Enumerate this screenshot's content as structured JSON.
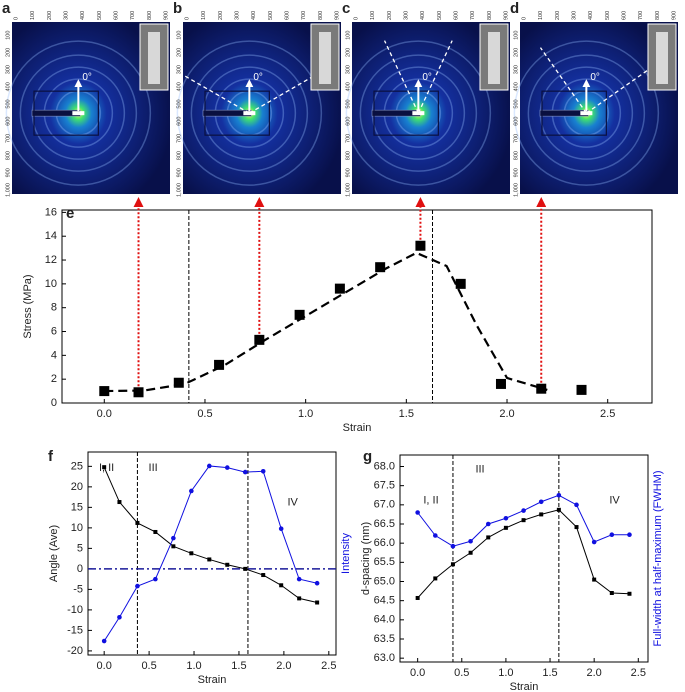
{
  "images": {
    "labels": [
      "a",
      "b",
      "c",
      "d"
    ],
    "angle_label": "0°",
    "x_ticks": [
      "0",
      "100",
      "200",
      "300",
      "400",
      "500",
      "600",
      "700",
      "800",
      "900"
    ],
    "y_ticks": [
      "100",
      "200",
      "300",
      "400",
      "500",
      "600",
      "700",
      "800",
      "900",
      "1,000"
    ]
  },
  "chart_data": [
    {
      "type": "scatter",
      "panel": "e",
      "xlabel": "Strain",
      "ylabel": "Stress (MPa)",
      "xlim": [
        -0.21,
        2.72
      ],
      "ylim": [
        0,
        16.2
      ],
      "xticks": [
        {
          "value": 0,
          "label": "0.0"
        },
        {
          "value": 0.5,
          "label": "0.5"
        },
        {
          "value": 1,
          "label": "1.0"
        },
        {
          "value": 1.5,
          "label": "1.5"
        },
        {
          "value": 2,
          "label": "2.0"
        },
        {
          "value": 2.5,
          "label": "2.5"
        }
      ],
      "yticks": [
        0,
        2,
        4,
        6,
        8,
        10,
        12,
        14,
        16
      ],
      "vlines": [
        0.42,
        1.63
      ],
      "arrow_color": "#e01010",
      "series": [
        {
          "color": "#000000",
          "marker": "square",
          "line": false,
          "x": [
            0,
            0.17,
            0.37,
            0.57,
            0.77,
            0.97,
            1.17,
            1.37,
            1.57,
            1.77,
            1.97,
            2.17,
            2.37
          ],
          "values": [
            1.0,
            0.9,
            1.7,
            3.2,
            5.3,
            7.4,
            9.6,
            11.4,
            13.2,
            10.0,
            1.6,
            1.2,
            1.1
          ]
        },
        {
          "color": "#000000",
          "marker": "none",
          "line": true,
          "dashed": true,
          "x": [
            0,
            0.2,
            0.4,
            0.6,
            0.8,
            1.0,
            1.2,
            1.4,
            1.55,
            1.7,
            1.85,
            2.0,
            2.2
          ],
          "values": [
            1.0,
            1.05,
            1.6,
            3.2,
            5.3,
            7.3,
            9.3,
            11.3,
            12.6,
            11.5,
            6.5,
            2.1,
            1.1
          ]
        }
      ]
    },
    {
      "type": "line",
      "panel": "f",
      "xlabel": "Strain",
      "ylabel": "Angle (Ave)",
      "y2label": "Intensity",
      "y2color": "#1010e0",
      "annotations": [
        "I, II",
        "III",
        "IV"
      ],
      "xlim": [
        -0.18,
        2.58
      ],
      "ylim": [
        -21,
        28.5
      ],
      "y2lim": [
        -21,
        28.5
      ],
      "xticks": [
        {
          "value": 0,
          "label": "0.0"
        },
        {
          "value": 0.5,
          "label": "0.5"
        },
        {
          "value": 1,
          "label": "1.0"
        },
        {
          "value": 1.5,
          "label": "1.5"
        },
        {
          "value": 2,
          "label": "2.0"
        },
        {
          "value": 2.5,
          "label": "2.5"
        }
      ],
      "yticks": [
        -20,
        -15,
        -10,
        -5,
        0,
        5,
        10,
        15,
        20,
        25
      ],
      "vlines": [
        0.37,
        1.6
      ],
      "hline": 0,
      "hline_color": "#1a1a9a",
      "series": [
        {
          "color": "#000000",
          "marker": "square",
          "line": true,
          "x": [
            0,
            0.17,
            0.37,
            0.57,
            0.77,
            0.97,
            1.17,
            1.37,
            1.57,
            1.77,
            1.97,
            2.17,
            2.37
          ],
          "values": [
            24.8,
            16.3,
            11.2,
            9.0,
            5.5,
            3.8,
            2.3,
            1.0,
            0,
            -1.5,
            -4.0,
            -7.2,
            -8.2
          ]
        },
        {
          "color": "#1010e0",
          "marker": "circle",
          "line": true,
          "axis": "y2",
          "x": [
            0,
            0.17,
            0.37,
            0.57,
            0.77,
            0.97,
            1.17,
            1.37,
            1.57,
            1.77,
            1.97,
            2.17,
            2.37
          ],
          "values": [
            -17.6,
            -11.8,
            -4.2,
            -2.5,
            7.5,
            19.0,
            25.1,
            24.7,
            23.6,
            23.8,
            9.8,
            -2.5,
            -3.5
          ]
        }
      ]
    },
    {
      "type": "line",
      "panel": "g",
      "xlabel": "Strain",
      "ylabel": "d-spacing (nm)",
      "y2label": "Full-width at half-maximum (FWHM)",
      "y2color": "#1010e0",
      "annotations": [
        "I, II",
        "III",
        "IV"
      ],
      "xlim": [
        -0.2,
        2.61
      ],
      "ylim": [
        62.9,
        68.3
      ],
      "y2lim": [
        62.9,
        68.3
      ],
      "xticks": [
        {
          "value": 0,
          "label": "0.0"
        },
        {
          "value": 0.5,
          "label": "0.5"
        },
        {
          "value": 1,
          "label": "1.0"
        },
        {
          "value": 1.5,
          "label": "1.5"
        },
        {
          "value": 2,
          "label": "2.0"
        },
        {
          "value": 2.5,
          "label": "2.5"
        }
      ],
      "yticks": [
        {
          "value": 63,
          "label": "63.0"
        },
        {
          "value": 63.5,
          "label": "63.5"
        },
        {
          "value": 64,
          "label": "64.0"
        },
        {
          "value": 64.5,
          "label": "64.5"
        },
        {
          "value": 65,
          "label": "65.0"
        },
        {
          "value": 65.5,
          "label": "65.5"
        },
        {
          "value": 66,
          "label": "66.0"
        },
        {
          "value": 66.5,
          "label": "66.5"
        },
        {
          "value": 67,
          "label": "67.0"
        },
        {
          "value": 67.5,
          "label": "67.5"
        },
        {
          "value": 68,
          "label": "68.0"
        }
      ],
      "vlines": [
        0.4,
        1.6
      ],
      "series": [
        {
          "color": "#000000",
          "marker": "square",
          "line": true,
          "x": [
            0,
            0.2,
            0.4,
            0.6,
            0.8,
            1.0,
            1.2,
            1.4,
            1.6,
            1.8,
            2.0,
            2.2,
            2.4
          ],
          "values": [
            64.57,
            65.08,
            65.45,
            65.75,
            66.15,
            66.4,
            66.6,
            66.75,
            66.87,
            66.42,
            65.05,
            64.7,
            64.68
          ]
        },
        {
          "color": "#1010e0",
          "marker": "circle",
          "line": true,
          "axis": "y2",
          "x": [
            0,
            0.2,
            0.4,
            0.6,
            0.8,
            1.0,
            1.2,
            1.4,
            1.6,
            1.8,
            2.0,
            2.2,
            2.4
          ],
          "values": [
            66.8,
            66.2,
            65.92,
            66.05,
            66.5,
            66.65,
            66.85,
            67.08,
            67.25,
            67.0,
            66.03,
            66.22,
            66.22
          ]
        }
      ]
    }
  ]
}
